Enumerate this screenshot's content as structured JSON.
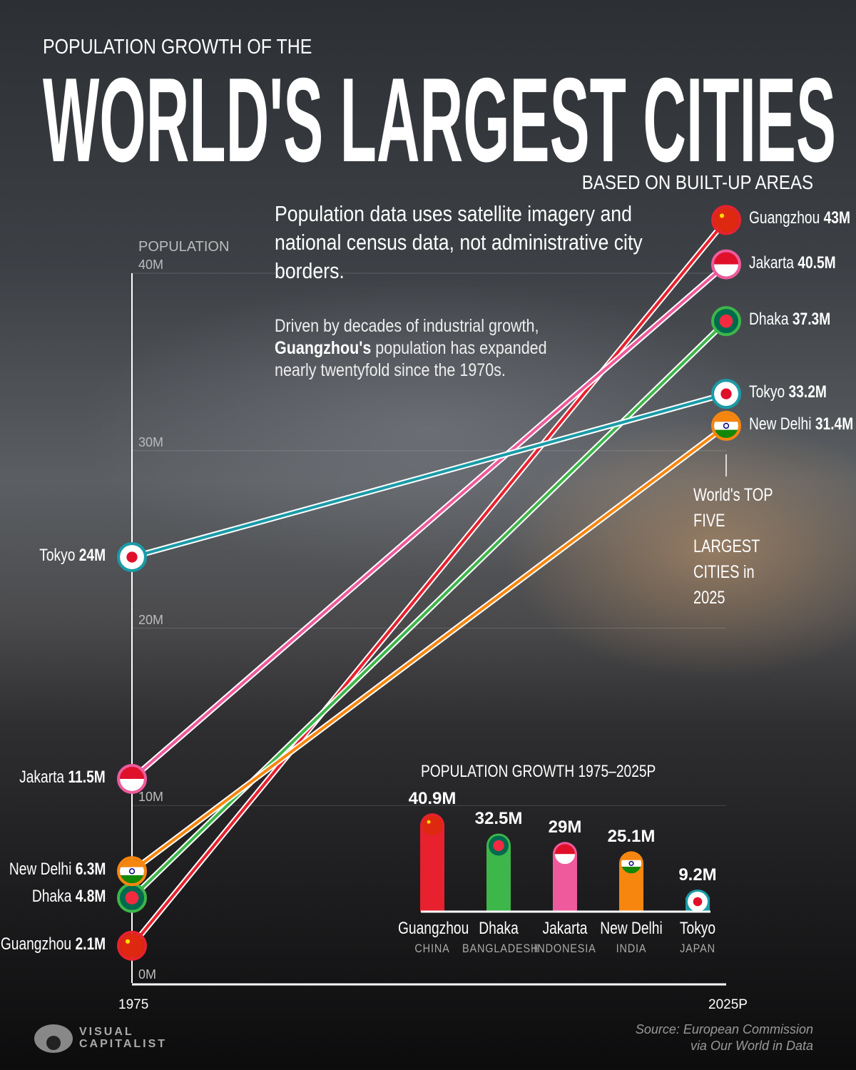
{
  "header": {
    "kicker": "POPULATION GROWTH OF THE",
    "title": "WORLD'S LARGEST CITIES",
    "subtitle": "BASED ON BUILT-UP AREAS"
  },
  "notes": {
    "note1": "Population data uses satellite imagery and national census data, not administrative city borders.",
    "note2_bold": "Guangzhou's",
    "note2_pre": "Driven by decades of industrial growth, ",
    "note2_post": " population has expanded nearly twentyfold since the 1970s."
  },
  "annotation": "World's TOP FIVE LARGEST CITIES in 2025",
  "source": {
    "line1": "Source: European Commission",
    "line2": "via Our World in Data"
  },
  "logo": {
    "line1": "VISUAL",
    "line2": "CAPITALIST"
  },
  "chart_data": [
    {
      "type": "line",
      "ylabel": "POPULATION",
      "x": [
        "1975",
        "2025P"
      ],
      "ylim": [
        0,
        40
      ],
      "yticks": [
        "0M",
        "10M",
        "20M",
        "30M",
        "40M"
      ],
      "grid": true,
      "series": [
        {
          "name": "Guangzhou",
          "values": [
            2.1,
            43
          ],
          "labels": [
            "2.1M",
            "43M"
          ],
          "color": "#e8212e",
          "flag": "china"
        },
        {
          "name": "Jakarta",
          "values": [
            11.5,
            40.5
          ],
          "labels": [
            "11.5M",
            "40.5M"
          ],
          "color": "#ef5a9c",
          "flag": "indonesia"
        },
        {
          "name": "Dhaka",
          "values": [
            4.8,
            37.3
          ],
          "labels": [
            "4.8M",
            "37.3M"
          ],
          "color": "#3db64a",
          "flag": "bangladesh"
        },
        {
          "name": "Tokyo",
          "values": [
            24,
            33.2
          ],
          "labels": [
            "24M",
            "33.2M"
          ],
          "color": "#1a9ba8",
          "flag": "japan"
        },
        {
          "name": "New Delhi",
          "values": [
            6.3,
            31.4
          ],
          "labels": [
            "6.3M",
            "31.4M"
          ],
          "color": "#f7860f",
          "flag": "india"
        }
      ]
    },
    {
      "type": "bar",
      "title": "POPULATION GROWTH 1975–2025P",
      "categories": [
        "Guangzhou",
        "Dhaka",
        "Jakarta",
        "New Delhi",
        "Tokyo"
      ],
      "countries": [
        "CHINA",
        "BANGLADESH",
        "INDONESIA",
        "INDIA",
        "JAPAN"
      ],
      "values": [
        40.9,
        32.5,
        29,
        25.1,
        9.2
      ],
      "labels": [
        "40.9M",
        "32.5M",
        "29M",
        "25.1M",
        "9.2M"
      ],
      "colors": [
        "#e8212e",
        "#3db64a",
        "#ef5a9c",
        "#f7860f",
        "#1a9ba8"
      ],
      "flags": [
        "china",
        "bangladesh",
        "indonesia",
        "india",
        "japan"
      ]
    }
  ]
}
